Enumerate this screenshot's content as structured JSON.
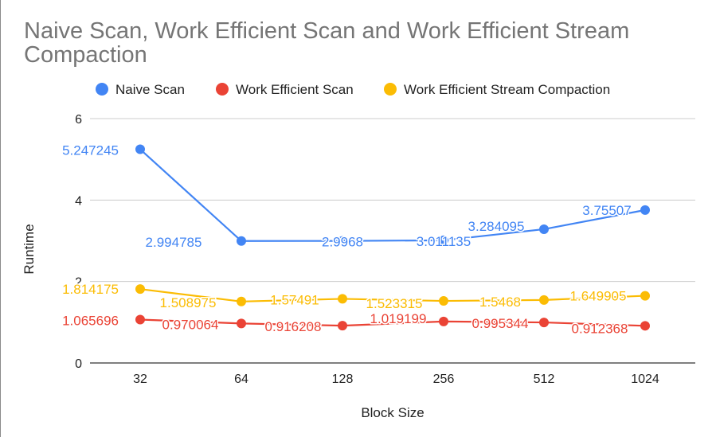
{
  "chart_data": {
    "type": "line",
    "title": "Naive Scan, Work Efficient Scan and Work Efficient Stream Compaction",
    "xlabel": "Block Size",
    "ylabel": "Runtime",
    "categories": [
      "32",
      "64",
      "128",
      "256",
      "512",
      "1024"
    ],
    "ylim": [
      0,
      6
    ],
    "yticks": [
      "0",
      "2",
      "4",
      "6"
    ],
    "grid": true,
    "legend_position": "top",
    "series": [
      {
        "name": "Naive Scan",
        "color": "#4285f4",
        "values": [
          5.247245,
          2.994785,
          2.9968,
          3.011135,
          3.284095,
          3.75507
        ],
        "labels": [
          "5.247245",
          "2.994785",
          "2.9968",
          "3.011135",
          "3.284095",
          "3.75507"
        ]
      },
      {
        "name": "Work Efficient Scan",
        "color": "#ea4335",
        "values": [
          1.065696,
          0.970064,
          0.916208,
          1.019199,
          0.995344,
          0.912368
        ],
        "labels": [
          "1.065696",
          "0.970064",
          "0.916208",
          "1.019199",
          "0.995344",
          "0.912368"
        ]
      },
      {
        "name": "Work Efficient Stream Compaction",
        "color": "#fbbc04",
        "values": [
          1.814175,
          1.508975,
          1.57491,
          1.523315,
          1.5468,
          1.649905
        ],
        "labels": [
          "1.814175",
          "1.508975",
          "1.57491",
          "1.523315",
          "1.5468",
          "1.649905"
        ]
      }
    ]
  }
}
